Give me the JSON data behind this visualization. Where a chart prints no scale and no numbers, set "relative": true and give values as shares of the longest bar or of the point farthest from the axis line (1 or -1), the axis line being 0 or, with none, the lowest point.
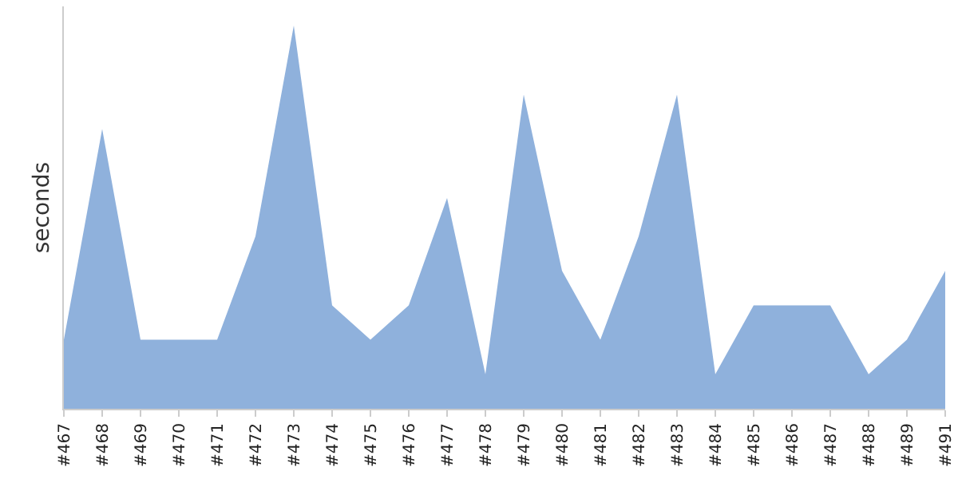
{
  "chart_data": {
    "type": "area",
    "ylabel": "seconds",
    "relative": true,
    "categories": [
      "#467",
      "#468",
      "#469",
      "#470",
      "#471",
      "#472",
      "#473",
      "#474",
      "#475",
      "#476",
      "#477",
      "#478",
      "#479",
      "#480",
      "#481",
      "#482",
      "#483",
      "#484",
      "#485",
      "#486",
      "#487",
      "#488",
      "#489",
      "#491"
    ],
    "series": [
      {
        "color": "#8fb1dc",
        "values": [
          0.18,
          0.73,
          0.18,
          0.18,
          0.18,
          0.45,
          1,
          0.27,
          0.18,
          0.27,
          0.55,
          0.09,
          0.82,
          0.36,
          0.18,
          0.45,
          0.82,
          0.09,
          0.27,
          0.27,
          0.27,
          0.09,
          0.18,
          0.36
        ]
      }
    ]
  }
}
